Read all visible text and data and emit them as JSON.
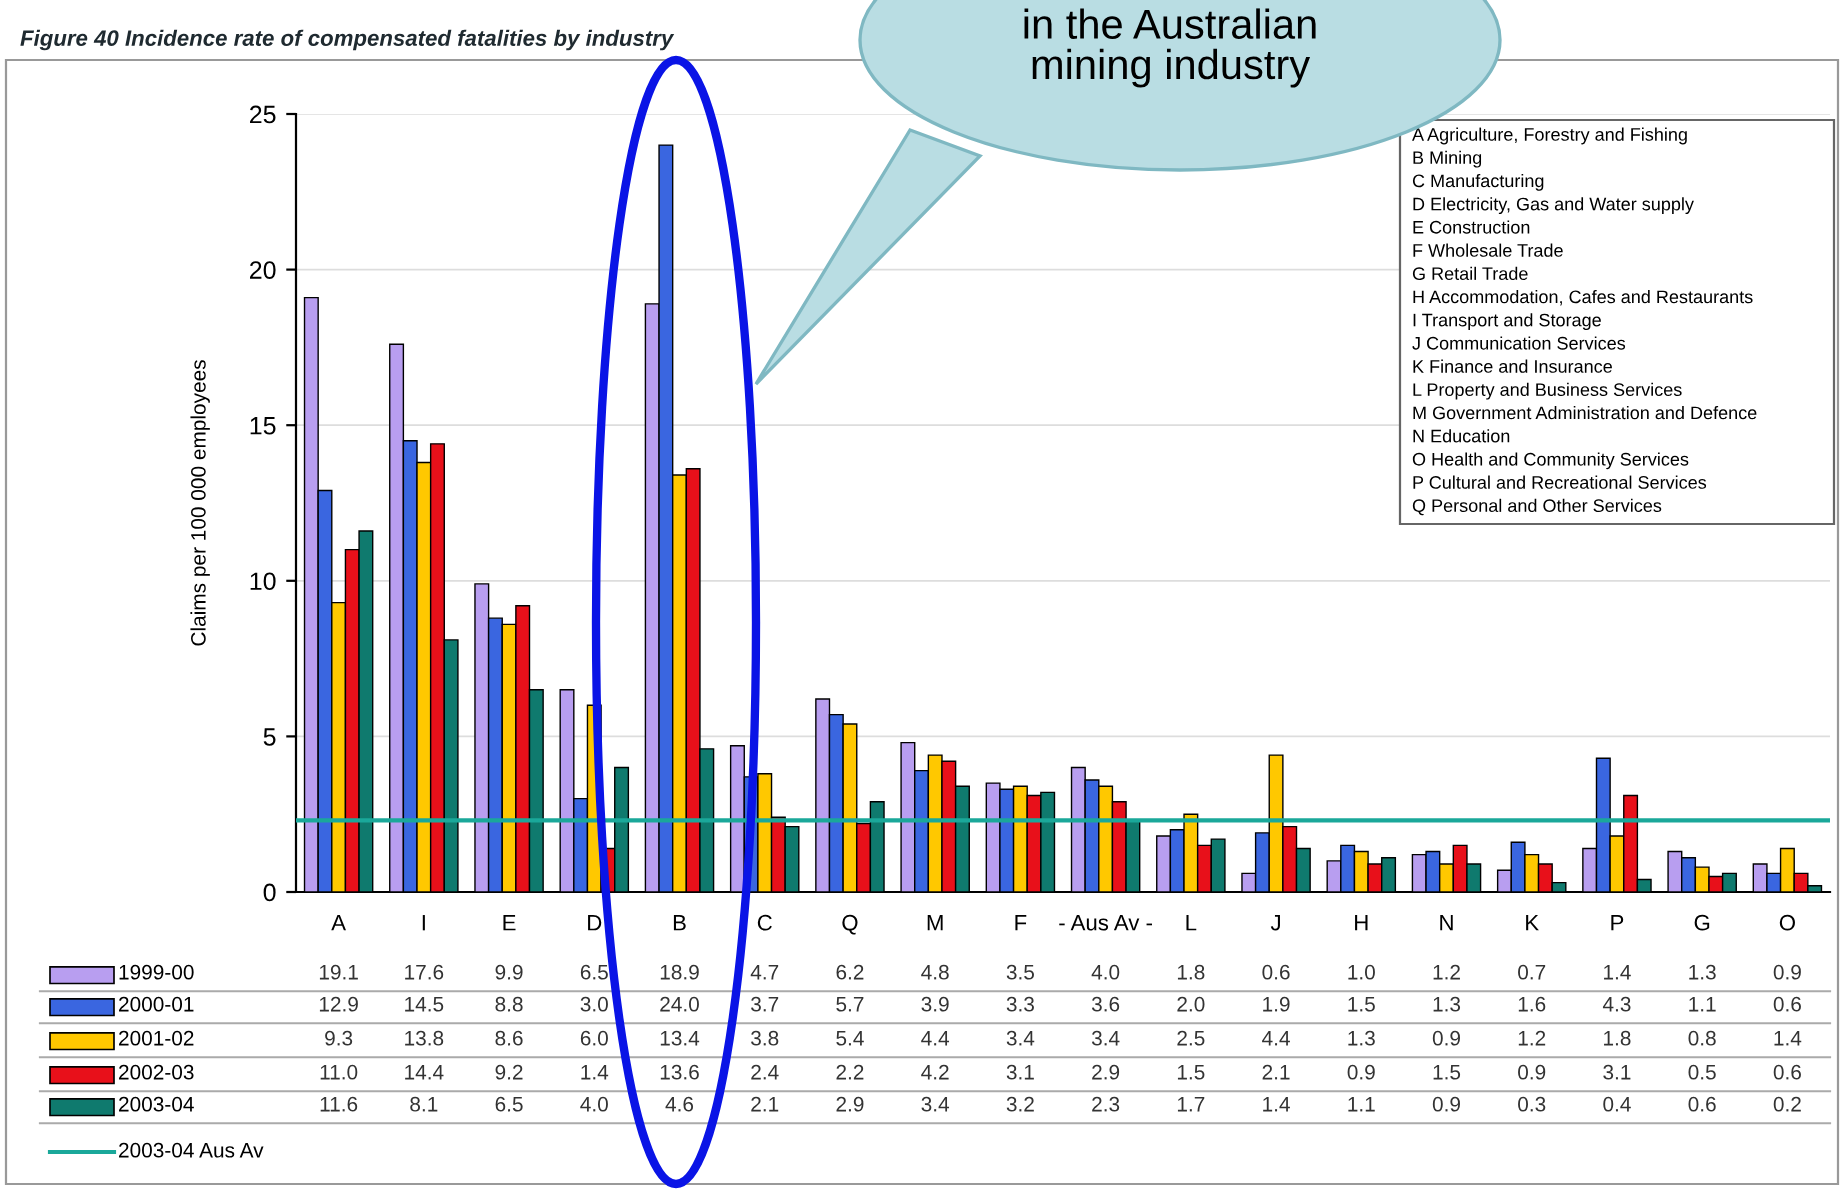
{
  "chart_data": {
    "type": "bar",
    "title": "Figure 40 Incidence rate of compensated fatalities by industry",
    "ylabel": "Claims per 100 000 employees",
    "categories": [
      "A",
      "I",
      "E",
      "D",
      "B",
      "C",
      "Q",
      "M",
      "F",
      "- Aus Av -",
      "L",
      "J",
      "H",
      "N",
      "K",
      "P",
      "G",
      "O"
    ],
    "series": [
      {
        "name": "1999-00",
        "color": "#b89ef0",
        "values": [
          19.1,
          17.6,
          9.9,
          6.5,
          18.9,
          4.7,
          6.2,
          4.8,
          3.5,
          4.0,
          1.8,
          0.6,
          1.0,
          1.2,
          0.7,
          1.4,
          1.3,
          0.9
        ],
        "value_labels": [
          "19.1",
          "17.6",
          "9.9",
          "6.5",
          "18.9",
          "4.7",
          "6.2",
          "4.8",
          "3.5",
          "4.0",
          "1.8",
          "0.6",
          "1.0",
          "1.2",
          "0.7",
          "1.4",
          "1.3",
          "0.9"
        ]
      },
      {
        "name": "2000-01",
        "color": "#3a66e0",
        "values": [
          12.9,
          14.5,
          8.8,
          3.0,
          24.0,
          3.7,
          5.7,
          3.9,
          3.3,
          3.6,
          2.0,
          1.9,
          1.5,
          1.3,
          1.6,
          4.3,
          1.1,
          0.6
        ],
        "value_labels": [
          "12.9",
          "14.5",
          "8.8",
          "3.0",
          "24.0",
          "3.7",
          "5.7",
          "3.9",
          "3.3",
          "3.6",
          "2.0",
          "1.9",
          "1.5",
          "1.3",
          "1.6",
          "4.3",
          "1.1",
          "0.6"
        ]
      },
      {
        "name": "2001-02",
        "color": "#ffc800",
        "values": [
          9.3,
          13.8,
          8.6,
          6.0,
          13.4,
          3.8,
          5.4,
          4.4,
          3.4,
          3.4,
          2.5,
          4.4,
          1.3,
          0.9,
          1.2,
          1.8,
          0.8,
          1.4
        ],
        "value_labels": [
          "9.3",
          "13.8",
          "8.6",
          "6.0",
          "13.4",
          "3.8",
          "5.4",
          "4.4",
          "3.4",
          "3.4",
          "2.5",
          "4.4",
          "1.3",
          "0.9",
          "1.2",
          "1.8",
          "0.8",
          "1.4"
        ]
      },
      {
        "name": "2002-03",
        "color": "#e8101a",
        "values": [
          11.0,
          14.4,
          9.2,
          1.4,
          13.6,
          2.4,
          2.2,
          4.2,
          3.1,
          2.9,
          1.5,
          2.1,
          0.9,
          1.5,
          0.9,
          3.1,
          0.5,
          0.6
        ],
        "value_labels": [
          "11.0",
          "14.4",
          "9.2",
          "1.4",
          "13.6",
          "2.4",
          "2.2",
          "4.2",
          "3.1",
          "2.9",
          "1.5",
          "2.1",
          "0.9",
          "1.5",
          "0.9",
          "3.1",
          "0.5",
          "0.6"
        ]
      },
      {
        "name": "2003-04",
        "color": "#0f7a6e",
        "values": [
          11.6,
          8.1,
          6.5,
          4.0,
          4.6,
          2.1,
          2.9,
          3.4,
          3.2,
          2.3,
          1.7,
          1.4,
          1.1,
          0.9,
          0.3,
          0.4,
          0.6,
          0.2
        ],
        "value_labels": [
          "11.6",
          "8.1",
          "6.5",
          "4.0",
          "4.6",
          "2.1",
          "2.9",
          "3.4",
          "3.2",
          "2.3",
          "1.7",
          "1.4",
          "1.1",
          "0.9",
          "0.3",
          "0.4",
          "0.6",
          "0.2"
        ]
      }
    ],
    "ref_lines": [
      {
        "axis": "y",
        "value": 2.3,
        "label": "2003-04 Aus Av",
        "color": "#1aa89a"
      }
    ],
    "ylim": [
      0,
      25
    ],
    "yticks": [
      0,
      5,
      10,
      15,
      20,
      25
    ],
    "grid": "y",
    "legend": "bottom left",
    "annotations": [
      "A Agriculture, Forestry and Fishing",
      "B Mining",
      "C Manufacturing",
      "D Electricity, Gas and Water supply",
      "E Construction",
      "F Wholesale Trade",
      "G Retail Trade",
      "H Accommodation, Cafes and Restaurants",
      "I Transport and Storage",
      "J Communication Services",
      "K Finance and Insurance",
      "L Property and Business Services",
      "M Government Administration and Defence",
      "N Education",
      "O Health and Community Services",
      "P Cultural and Recreational Services",
      "Q Personal and Other Services",
      "in the Australian\nmining industry"
    ]
  }
}
